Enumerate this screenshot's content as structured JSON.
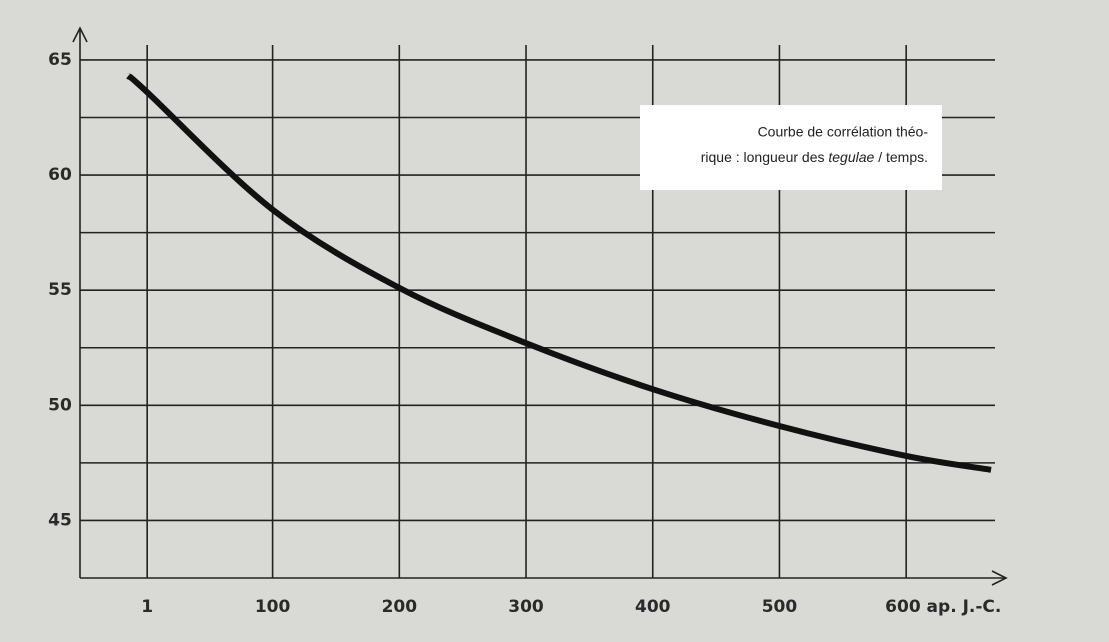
{
  "chart_data": {
    "type": "line",
    "annotation": {
      "line1": "Courbe de corrélation théo-",
      "line2": [
        "rique : longueur des ",
        "tegulae",
        " / temps."
      ]
    },
    "x": [
      -14,
      1,
      100,
      200,
      300,
      400,
      500,
      600,
      667
    ],
    "series": [
      {
        "color": "#111111",
        "values": [
          64.3,
          63.6,
          58.5,
          55.1,
          52.7,
          50.7,
          49.1,
          47.8,
          47.2
        ]
      }
    ],
    "xlim": [
      -52,
      678
    ],
    "xticks": [
      1,
      100,
      200,
      300,
      400,
      500,
      {
        "value": 600,
        "label": "600 ap. J.-C."
      }
    ],
    "ylim": [
      42.5,
      66.3
    ],
    "yticks": [
      45,
      50,
      55,
      60,
      65
    ],
    "yminorticks": [
      47.5,
      52.5,
      57.5,
      62.5
    ],
    "grid": true
  }
}
